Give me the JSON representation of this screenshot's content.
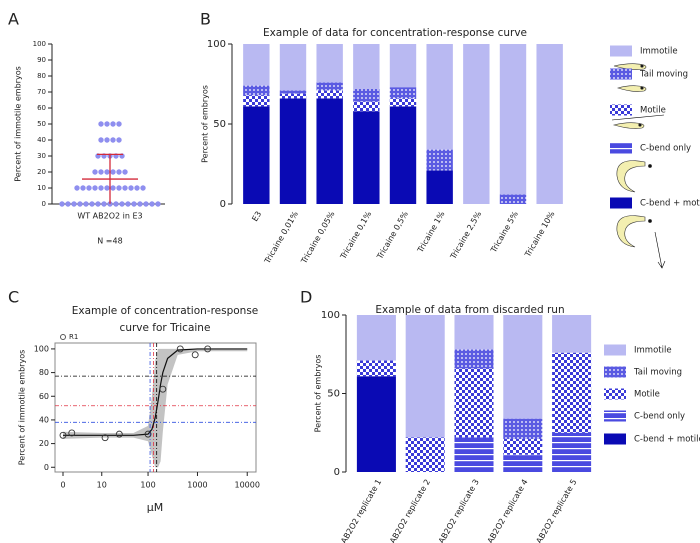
{
  "chart_data": [
    {
      "panel_label": "A",
      "type": "dot",
      "category": "WT AB2O2 in E3",
      "annotation": "N =48",
      "ylabel": "Percent of immotile embryos",
      "values": [
        0,
        0,
        0,
        0,
        0,
        0,
        0,
        0,
        0,
        0,
        0,
        0,
        0,
        0,
        0,
        0,
        0,
        10,
        10,
        10,
        10,
        10,
        10,
        10,
        10,
        10,
        10,
        10,
        10,
        20,
        20,
        20,
        20,
        20,
        20,
        30,
        30,
        30,
        30,
        30,
        40,
        40,
        40,
        40,
        50,
        50,
        50,
        50
      ],
      "color": "#8f8fef",
      "mean": 15.6,
      "sd": 15.4,
      "error_color": "#d42a3a",
      "ylim": [
        0,
        100
      ],
      "yticks": [
        0,
        10,
        20,
        30,
        40,
        50,
        60,
        70,
        80,
        90,
        100
      ]
    },
    {
      "panel_label": "B",
      "type": "stacked_bar",
      "title": "Example of data for concentration-response curve",
      "ylabel": "Percent of embryos",
      "categories": [
        "E3",
        "Tricaine 0,01%",
        "Tricaine 0,05%",
        "Tricaine 0,1%",
        "Tricaine 0,5%",
        "Tricaine 1%",
        "Tricaine 2,5%",
        "Tricaine 5%",
        "Tricaine 10%"
      ],
      "series": [
        {
          "name": "C-bend + motile",
          "color": "#0a0ab4",
          "pattern": "solid",
          "values": [
            61,
            66,
            66,
            58,
            61,
            21,
            0,
            0,
            0
          ]
        },
        {
          "name": "C-bend only",
          "color": "#4a4ae0",
          "pattern": "lines",
          "values": [
            0,
            0,
            0,
            0,
            0,
            0,
            0,
            0,
            0
          ]
        },
        {
          "name": "Motile",
          "color": "#3a3ad8",
          "pattern": "checker",
          "values": [
            7,
            3,
            5,
            6,
            5,
            0,
            0,
            0,
            0
          ]
        },
        {
          "name": "Tail moving",
          "color": "#5a5ae2",
          "pattern": "dots",
          "values": [
            6,
            2,
            5,
            8,
            7,
            13,
            0,
            6,
            0
          ]
        },
        {
          "name": "Immotile",
          "color": "#b9b9f2",
          "pattern": "solid",
          "values": [
            26,
            29,
            24,
            28,
            27,
            66,
            100,
            94,
            100
          ]
        }
      ],
      "ylim": [
        0,
        100
      ],
      "yticks": [
        0,
        50,
        100
      ]
    },
    {
      "panel_label": "C",
      "type": "dose_response",
      "title": [
        "Example of concentration-response",
        "curve for Tricaine"
      ],
      "xlabel": "µM",
      "ylabel": "Percent of immotile embryos",
      "legend": "R1",
      "x": [
        0,
        1,
        12,
        25,
        100,
        200,
        450,
        900,
        1600
      ],
      "values": [
        27,
        29,
        25,
        28,
        28,
        66,
        100,
        95,
        100
      ],
      "fit": {
        "x": [
          0,
          10,
          50,
          100,
          120,
          140,
          160,
          180,
          200,
          250,
          400,
          1000,
          10000
        ],
        "values": [
          27,
          27,
          27,
          28,
          32,
          42,
          56,
          70,
          80,
          92,
          99,
          100,
          100
        ],
        "lower": [
          24,
          25,
          25,
          22,
          10,
          0,
          0,
          5,
          30,
          70,
          95,
          98,
          98
        ],
        "upper": [
          30,
          29,
          29,
          35,
          60,
          90,
          100,
          100,
          100,
          100,
          100,
          100,
          100
        ]
      },
      "hlines": [
        {
          "value": 77,
          "color": "#000000"
        },
        {
          "value": 52,
          "color": "#e03040"
        },
        {
          "value": 38,
          "color": "#3050e0"
        }
      ],
      "vlines": [
        {
          "value": 110,
          "color": "#3050e0"
        },
        {
          "value": 130,
          "color": "#e03040"
        },
        {
          "value": 150,
          "color": "#000000"
        }
      ],
      "xscale": "log",
      "xlim": [
        0,
        15000
      ],
      "xticks": [
        0,
        10,
        100,
        1000,
        10000
      ],
      "ylim": [
        -4,
        105
      ],
      "yticks": [
        0,
        20,
        40,
        60,
        80,
        100
      ]
    },
    {
      "panel_label": "D",
      "type": "stacked_bar",
      "title": "Example of data from discarded run",
      "ylabel": "Percent of embryos",
      "categories": [
        "AB2O2 replicate 1",
        "AB2O2 replicate 2",
        "AB2O2 replicate 3",
        "AB2O2 replicate 4",
        "AB2O2 replicate 5"
      ],
      "series": [
        {
          "name": "C-bend + motile",
          "color": "#0a0ab4",
          "pattern": "solid",
          "values": [
            61,
            0,
            0,
            0,
            0
          ]
        },
        {
          "name": "C-bend only",
          "color": "#4a4ae0",
          "pattern": "lines",
          "values": [
            0,
            0,
            22,
            11,
            25
          ]
        },
        {
          "name": "Motile",
          "color": "#3a3ad8",
          "pattern": "checker",
          "values": [
            10,
            22,
            44,
            10,
            51
          ]
        },
        {
          "name": "Tail moving",
          "color": "#5a5ae2",
          "pattern": "dots",
          "values": [
            0,
            0,
            12,
            13,
            0
          ]
        },
        {
          "name": "Immotile",
          "color": "#b9b9f2",
          "pattern": "solid",
          "values": [
            29,
            78,
            22,
            66,
            24
          ]
        }
      ],
      "ylim": [
        0,
        100
      ],
      "yticks": [
        0,
        50,
        100
      ]
    }
  ]
}
